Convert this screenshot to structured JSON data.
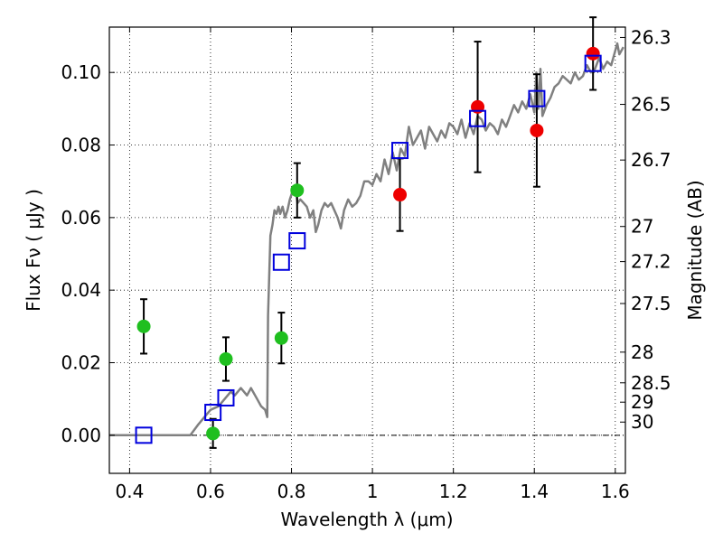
{
  "chart_data": {
    "type": "scatter",
    "xlabel": "Wavelength  λ (μm)",
    "ylabel": "Flux  Fν  ( μJy )",
    "ylabel_right": "Magnitude (AB)",
    "xlim": [
      0.35,
      1.625
    ],
    "ylim": [
      -0.0105,
      0.1125
    ],
    "x_ticks": [
      {
        "value": 0.4,
        "label": "0.4"
      },
      {
        "value": 0.6,
        "label": "0.6"
      },
      {
        "value": 0.8,
        "label": "0.8"
      },
      {
        "value": 1.0,
        "label": "1"
      },
      {
        "value": 1.2,
        "label": "1.2"
      },
      {
        "value": 1.4,
        "label": "1.4"
      },
      {
        "value": 1.6,
        "label": "1.6"
      }
    ],
    "y_ticks": [
      {
        "value": 0.0,
        "label": "0.00"
      },
      {
        "value": 0.02,
        "label": "0.02"
      },
      {
        "value": 0.04,
        "label": "0.04"
      },
      {
        "value": 0.06,
        "label": "0.06"
      },
      {
        "value": 0.08,
        "label": "0.08"
      },
      {
        "value": 0.1,
        "label": "0.10"
      }
    ],
    "mag_ticks": [
      {
        "value": 26.3,
        "label": "26.3"
      },
      {
        "value": 26.5,
        "label": "26.5"
      },
      {
        "value": 26.7,
        "label": "26.7"
      },
      {
        "value": 27.0,
        "label": "27"
      },
      {
        "value": 27.2,
        "label": "27.2"
      },
      {
        "value": 27.5,
        "label": "27.5"
      },
      {
        "value": 28.0,
        "label": "28"
      },
      {
        "value": 28.5,
        "label": "28.5"
      },
      {
        "value": 29.0,
        "label": "29"
      },
      {
        "value": 30.0,
        "label": "30"
      }
    ],
    "grid": true,
    "grid_style": "dotted",
    "zero_line": true,
    "colors": {
      "spectrum": "#808080",
      "green_points": "#1fbf1f",
      "red_points": "#ee0000",
      "model_squares": "#0000dd",
      "errorbars": "#000000"
    },
    "spectrum": {
      "x": [
        0.35,
        0.55,
        0.57,
        0.585,
        0.6,
        0.62,
        0.635,
        0.65,
        0.66,
        0.675,
        0.69,
        0.7,
        0.715,
        0.725,
        0.735,
        0.74,
        0.742,
        0.748,
        0.753,
        0.758,
        0.763,
        0.768,
        0.772,
        0.778,
        0.784,
        0.79,
        0.796,
        0.802,
        0.81,
        0.815,
        0.822,
        0.83,
        0.838,
        0.846,
        0.854,
        0.86,
        0.866,
        0.874,
        0.882,
        0.89,
        0.898,
        0.906,
        0.914,
        0.922,
        0.93,
        0.94,
        0.95,
        0.96,
        0.97,
        0.98,
        0.99,
        1.0,
        1.01,
        1.02,
        1.03,
        1.04,
        1.05,
        1.06,
        1.07,
        1.08,
        1.09,
        1.1,
        1.11,
        1.12,
        1.13,
        1.14,
        1.15,
        1.16,
        1.17,
        1.18,
        1.19,
        1.2,
        1.21,
        1.22,
        1.23,
        1.24,
        1.25,
        1.26,
        1.27,
        1.28,
        1.29,
        1.3,
        1.31,
        1.32,
        1.33,
        1.34,
        1.35,
        1.36,
        1.37,
        1.38,
        1.39,
        1.4,
        1.405,
        1.41,
        1.415,
        1.42,
        1.43,
        1.44,
        1.45,
        1.46,
        1.47,
        1.48,
        1.49,
        1.5,
        1.51,
        1.52,
        1.53,
        1.54,
        1.55,
        1.56,
        1.57,
        1.58,
        1.59,
        1.6,
        1.605,
        1.61,
        1.62
      ],
      "y": [
        0.0,
        0.0,
        0.003,
        0.005,
        0.007,
        0.008,
        0.01,
        0.012,
        0.011,
        0.013,
        0.011,
        0.013,
        0.01,
        0.008,
        0.007,
        0.005,
        0.033,
        0.055,
        0.058,
        0.062,
        0.061,
        0.063,
        0.061,
        0.063,
        0.06,
        0.062,
        0.065,
        0.067,
        0.068,
        0.064,
        0.065,
        0.064,
        0.063,
        0.06,
        0.062,
        0.056,
        0.058,
        0.062,
        0.064,
        0.063,
        0.064,
        0.062,
        0.06,
        0.057,
        0.062,
        0.065,
        0.063,
        0.064,
        0.066,
        0.07,
        0.07,
        0.069,
        0.072,
        0.07,
        0.076,
        0.072,
        0.078,
        0.073,
        0.079,
        0.077,
        0.085,
        0.08,
        0.082,
        0.084,
        0.079,
        0.085,
        0.083,
        0.081,
        0.084,
        0.082,
        0.086,
        0.085,
        0.083,
        0.087,
        0.082,
        0.086,
        0.083,
        0.088,
        0.087,
        0.084,
        0.086,
        0.085,
        0.083,
        0.087,
        0.085,
        0.088,
        0.091,
        0.089,
        0.092,
        0.09,
        0.094,
        0.089,
        0.1,
        0.09,
        0.101,
        0.088,
        0.091,
        0.093,
        0.096,
        0.097,
        0.099,
        0.098,
        0.097,
        0.1,
        0.098,
        0.099,
        0.102,
        0.1,
        0.101,
        0.104,
        0.101,
        0.103,
        0.102,
        0.106,
        0.108,
        0.105,
        0.107
      ]
    },
    "series": [
      {
        "marker": "circle",
        "color": "green",
        "points": [
          {
            "x": 0.435,
            "y": 0.03,
            "err_lo": 0.0075,
            "err_hi": 0.0075
          },
          {
            "x": 0.606,
            "y": 0.0005,
            "err_lo": 0.004,
            "err_hi": 0.004
          },
          {
            "x": 0.638,
            "y": 0.021,
            "err_lo": 0.006,
            "err_hi": 0.006
          },
          {
            "x": 0.775,
            "y": 0.0268,
            "err_lo": 0.007,
            "err_hi": 0.007
          },
          {
            "x": 0.814,
            "y": 0.0675,
            "err_lo": 0.0075,
            "err_hi": 0.0075
          }
        ]
      },
      {
        "marker": "circle",
        "color": "red",
        "points": [
          {
            "x": 1.068,
            "y": 0.0663,
            "err_lo": 0.01,
            "err_hi": 0.01
          },
          {
            "x": 1.26,
            "y": 0.0905,
            "err_lo": 0.018,
            "err_hi": 0.018
          },
          {
            "x": 1.406,
            "y": 0.084,
            "err_lo": 0.0155,
            "err_hi": 0.0155
          },
          {
            "x": 1.545,
            "y": 0.1052,
            "err_lo": 0.01,
            "err_hi": 0.01
          }
        ]
      },
      {
        "marker": "open-square",
        "color": "blue",
        "points": [
          {
            "x": 0.435,
            "y": 0.0
          },
          {
            "x": 0.606,
            "y": 0.0063
          },
          {
            "x": 0.638,
            "y": 0.0103
          },
          {
            "x": 0.775,
            "y": 0.0477
          },
          {
            "x": 0.814,
            "y": 0.0536
          },
          {
            "x": 1.068,
            "y": 0.0785
          },
          {
            "x": 1.26,
            "y": 0.0873
          },
          {
            "x": 1.406,
            "y": 0.0928
          },
          {
            "x": 1.545,
            "y": 0.1025
          }
        ]
      }
    ]
  }
}
